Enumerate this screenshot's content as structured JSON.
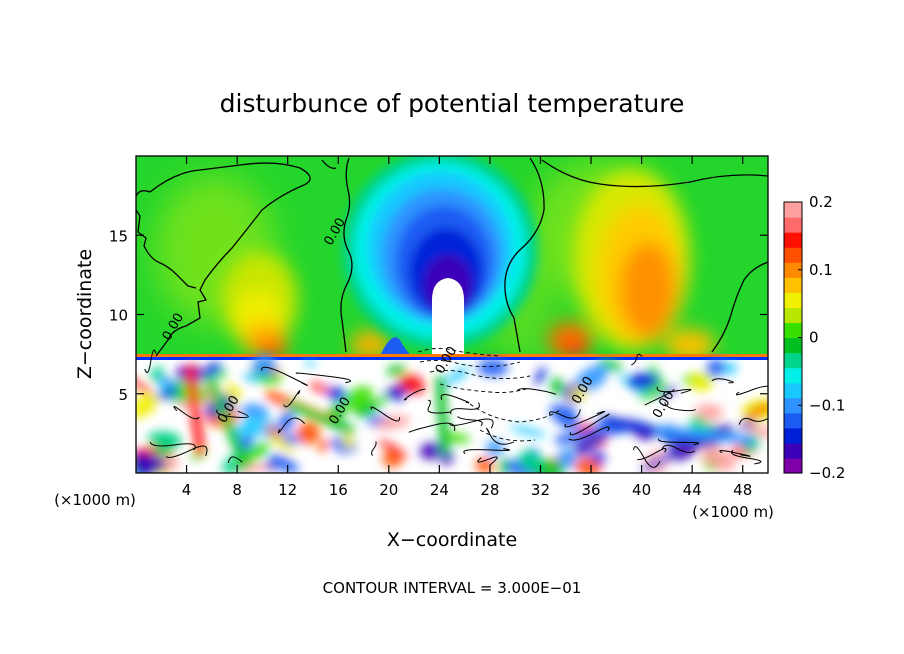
{
  "chart_data": {
    "type": "heatmap",
    "title": "disturbunce of potential temperature",
    "xlabel": "X−coordinate",
    "ylabel": "Z−coordinate",
    "x_unit": "(×1000 m)",
    "z_unit": "(×1000 m)",
    "footer": "CONTOUR INTERVAL = 3.000E−01",
    "xlim": [
      0,
      50
    ],
    "ylim": [
      0,
      20
    ],
    "x_ticks": [
      4,
      8,
      12,
      16,
      20,
      24,
      28,
      32,
      36,
      40,
      44,
      48
    ],
    "y_ticks": [
      5,
      10,
      15
    ],
    "colorbar": {
      "range": [
        -0.2,
        0.2
      ],
      "ticks": [
        0.2,
        0.1,
        0,
        -0.1,
        -0.2
      ],
      "tick_labels": [
        "0.2",
        "0.1",
        "0",
        "−0.1",
        "−0.2"
      ],
      "colors": [
        "#7f00a8",
        "#3a00b8",
        "#0020d8",
        "#1c5cf2",
        "#2f93ff",
        "#18c8ff",
        "#00f0e8",
        "#00d48a",
        "#00c020",
        "#38e000",
        "#b8e600",
        "#f0f000",
        "#ffc000",
        "#ff8a00",
        "#ff5000",
        "#ff1000",
        "#ff6a6a",
        "#ffa0a0"
      ]
    },
    "contour_labels": [
      {
        "text": "0.00",
        "x": 16,
        "z": 15.1
      },
      {
        "text": "0.00",
        "x": 3.2,
        "z": 9.1
      },
      {
        "text": "0.00",
        "x": 24.8,
        "z": 7.0
      },
      {
        "text": "0.00",
        "x": 16.4,
        "z": 3.8
      },
      {
        "text": "0.00",
        "x": 35.6,
        "z": 5.1
      },
      {
        "text": "0.00",
        "x": 42.0,
        "z": 4.2
      },
      {
        "text": "0.00",
        "x": 7.6,
        "z": 3.9
      }
    ],
    "features": [
      {
        "name": "cold bubble",
        "x_center": 24.5,
        "z_top": 18.5,
        "value_min": -0.2
      },
      {
        "name": "warm plume left",
        "x_center": 11.5,
        "z_range": [
          7.5,
          12
        ],
        "value_max": 0.12
      },
      {
        "name": "warm plume right",
        "x_center": 40.5,
        "z_range": [
          7.5,
          16
        ],
        "value_max": 0.12
      },
      {
        "name": "interface",
        "z": 7.2
      }
    ]
  }
}
